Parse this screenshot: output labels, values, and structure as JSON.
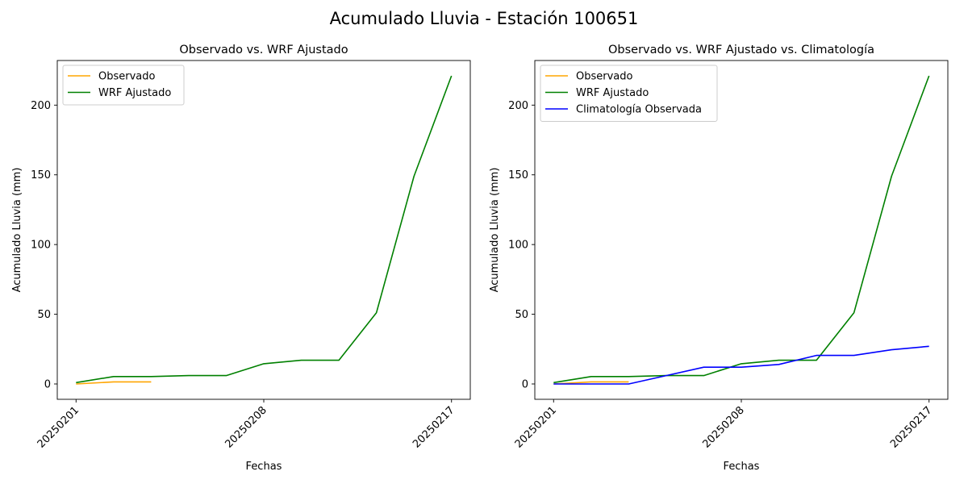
{
  "figure": {
    "suptitle": "Acumulado Lluvia - Estación 100651"
  },
  "chart_data": [
    {
      "type": "line",
      "title": "Observado vs. WRF Ajustado",
      "xlabel": "Fechas",
      "ylabel": "Acumulado Lluvia (mm)",
      "x_tick_labels": [
        "20250201",
        "20250208",
        "20250217"
      ],
      "x_tick_indices": [
        0,
        5,
        10
      ],
      "x_range": [
        -0.5,
        10.5
      ],
      "y_ticks": [
        0,
        50,
        100,
        150,
        200
      ],
      "ylim": [
        -11,
        232
      ],
      "grid": false,
      "legend_position": "upper-left",
      "series": [
        {
          "name": "Observado",
          "color": "#ffa500",
          "x": [
            0,
            1,
            2
          ],
          "y": [
            0,
            1.5,
            1.5
          ]
        },
        {
          "name": "WRF Ajustado",
          "color": "#008000",
          "x": [
            0,
            1,
            2,
            3,
            4,
            5,
            6,
            7,
            8,
            9,
            10
          ],
          "y": [
            1,
            5.3,
            5.3,
            6,
            6,
            14.5,
            17,
            17,
            51,
            149,
            221
          ]
        }
      ]
    },
    {
      "type": "line",
      "title": "Observado vs. WRF Ajustado vs. Climatología",
      "xlabel": "Fechas",
      "ylabel": "Acumulado Lluvia (mm)",
      "x_tick_labels": [
        "20250201",
        "20250208",
        "20250217"
      ],
      "x_tick_indices": [
        0,
        5,
        10
      ],
      "x_range": [
        -0.5,
        10.5
      ],
      "y_ticks": [
        0,
        50,
        100,
        150,
        200
      ],
      "ylim": [
        -11,
        232
      ],
      "grid": false,
      "legend_position": "upper-left",
      "series": [
        {
          "name": "Observado",
          "color": "#ffa500",
          "x": [
            0,
            1,
            2
          ],
          "y": [
            0,
            1.5,
            1.5
          ]
        },
        {
          "name": "WRF Ajustado",
          "color": "#008000",
          "x": [
            0,
            1,
            2,
            3,
            4,
            5,
            6,
            7,
            8,
            9,
            10
          ],
          "y": [
            1,
            5.3,
            5.3,
            6,
            6,
            14.5,
            17,
            17,
            51,
            149,
            221
          ]
        },
        {
          "name": "Climatología Observada",
          "color": "#0000ff",
          "x": [
            0,
            1,
            2,
            3,
            4,
            5,
            6,
            7,
            8,
            9,
            10
          ],
          "y": [
            0,
            0,
            0,
            6,
            12,
            12,
            14,
            20.5,
            20.5,
            24.5,
            27
          ]
        }
      ]
    }
  ]
}
